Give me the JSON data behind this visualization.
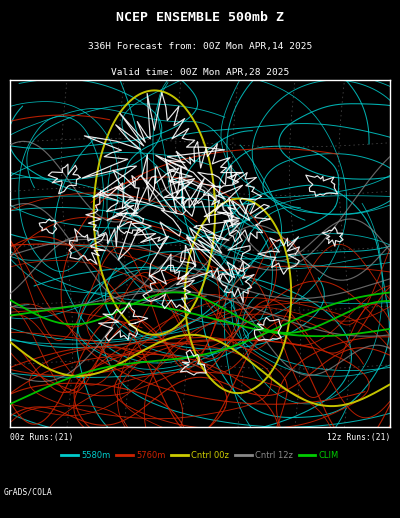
{
  "title_line1": "NCEP ENSEMBLE 500mb Z",
  "title_line2": "336H Forecast from: 00Z Mon APR,14 2025",
  "title_line3": "Valid time: 00Z Mon APR,28 2025",
  "bg_color": "#000000",
  "map_bg": "#000000",
  "map_border": "#ffffff",
  "label_00z": "00z Runs:(21)",
  "label_12z": "12z Runs:(21)",
  "legend_items": [
    {
      "label": "5580m",
      "color": "#00cccc",
      "linestyle": "-"
    },
    {
      "label": "5760m",
      "color": "#cc2200",
      "linestyle": "-"
    },
    {
      "label": "Cntrl 00z",
      "color": "#cccc00",
      "linestyle": "-"
    },
    {
      "label": "Cntrl 12z",
      "color": "#888888",
      "linestyle": "-"
    },
    {
      "label": "CLIM",
      "color": "#00cc00",
      "linestyle": "-"
    }
  ],
  "watermark": "GrADS/COLA",
  "cyan_color": "#00cccc",
  "red_color": "#cc2200",
  "yellow_color": "#cccc00",
  "gray_color": "#888888",
  "green_color": "#00cc00",
  "white_color": "#ffffff",
  "dotted_color": "#888888",
  "seed": 42,
  "n_cyan_lines": 42,
  "n_red_lines": 35
}
